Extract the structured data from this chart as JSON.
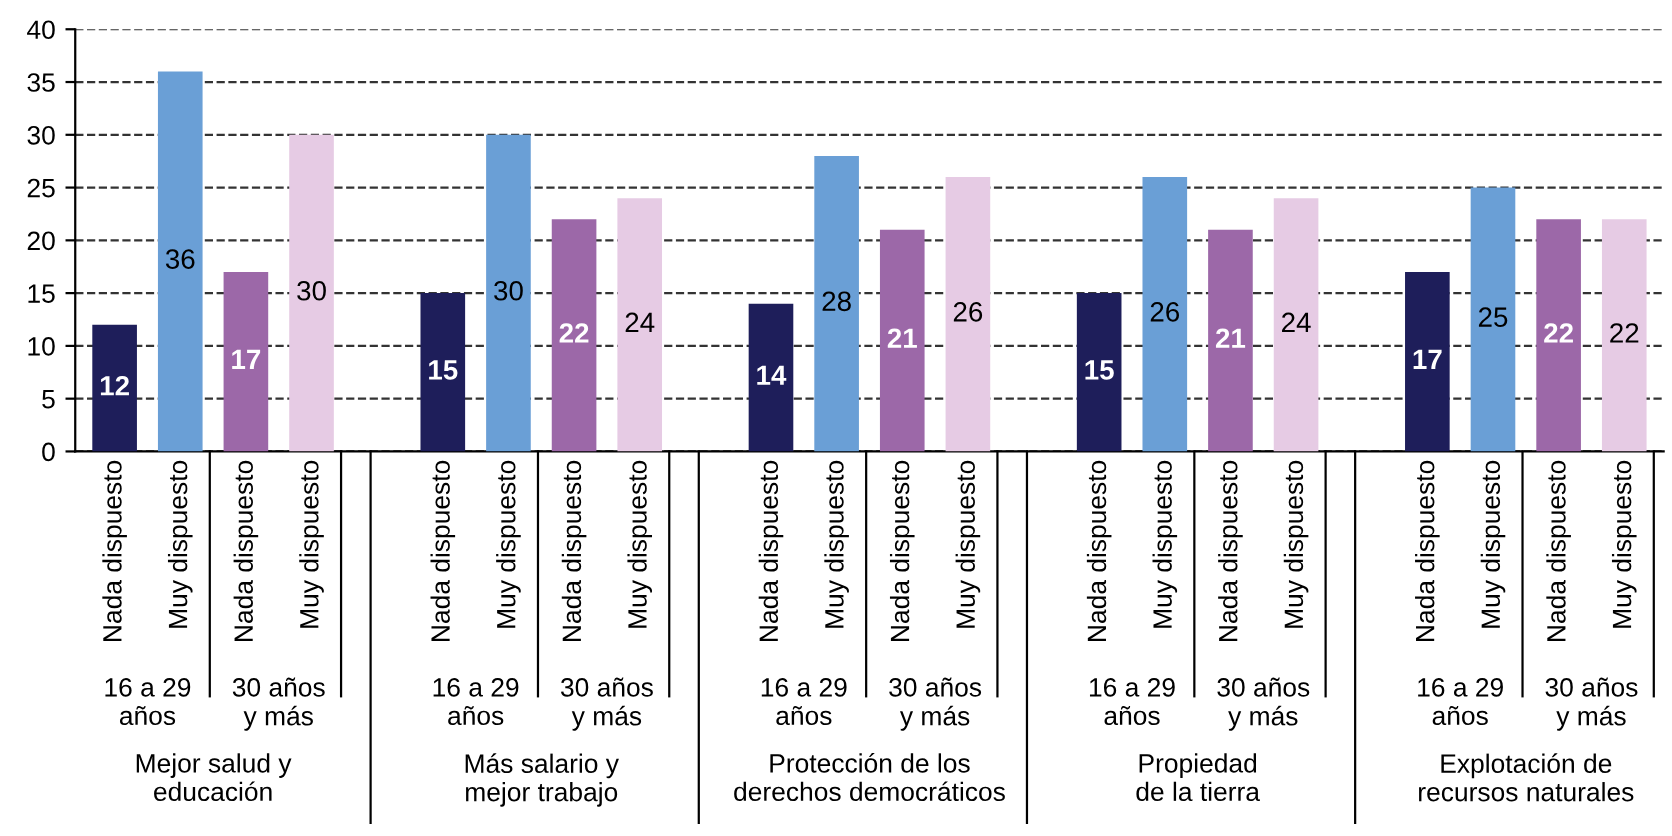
{
  "chart_data": {
    "type": "bar",
    "categories": [
      "Nada dispuesto",
      "Muy dispuesto",
      "Nada dispuesto",
      "Muy dispuesto",
      null,
      "Nada dispuesto",
      "Muy dispuesto",
      "Nada dispuesto",
      "Muy dispuesto",
      null,
      "Nada dispuesto",
      "Muy dispuesto",
      "Nada dispuesto",
      "Muy dispuesto",
      null,
      "Nada dispuesto",
      "Muy dispuesto",
      "Nada dispuesto",
      "Muy dispuesto",
      null,
      "Nada dispuesto",
      "Muy dispuesto",
      "Nada dispuesto",
      "Muy dispuesto"
    ],
    "values": [
      12,
      36,
      17,
      30,
      null,
      15,
      30,
      22,
      24,
      null,
      14,
      28,
      21,
      26,
      null,
      15,
      26,
      21,
      24,
      null,
      17,
      25,
      22,
      22
    ],
    "colors": [
      "#1e1e5a",
      "#6a9fd6",
      "#9c68a8",
      "#e6cbe4",
      null,
      "#1e1e5a",
      "#6a9fd6",
      "#9c68a8",
      "#e6cbe4",
      null,
      "#1e1e5a",
      "#6a9fd6",
      "#9c68a8",
      "#e6cbe4",
      null,
      "#1e1e5a",
      "#6a9fd6",
      "#9c68a8",
      "#e6cbe4",
      null,
      "#1e1e5a",
      "#6a9fd6",
      "#9c68a8",
      "#e6cbe4"
    ],
    "data_labels": true,
    "ylim": [
      0,
      40
    ],
    "yticks": [
      0,
      5,
      10,
      15,
      20,
      25,
      30,
      35,
      40
    ],
    "grid": "y",
    "line_style": "dashed",
    "annotations": [
      "16 a 29\naños",
      "30 años\ny más",
      "16 a 29\naños",
      "30 años\ny más",
      "16 a 29\naños",
      "30 años\ny más",
      "16 a 29\naños",
      "30 años\ny más",
      "16 a 29\naños",
      "30 años\ny más",
      "Mejor salud y\neducación",
      "Más salario y\nmejor trabajo",
      "Protección de los\nderechos democráticos",
      "Propiedad\nde la tierra",
      "Explotación de\nrecursos naturales"
    ]
  }
}
